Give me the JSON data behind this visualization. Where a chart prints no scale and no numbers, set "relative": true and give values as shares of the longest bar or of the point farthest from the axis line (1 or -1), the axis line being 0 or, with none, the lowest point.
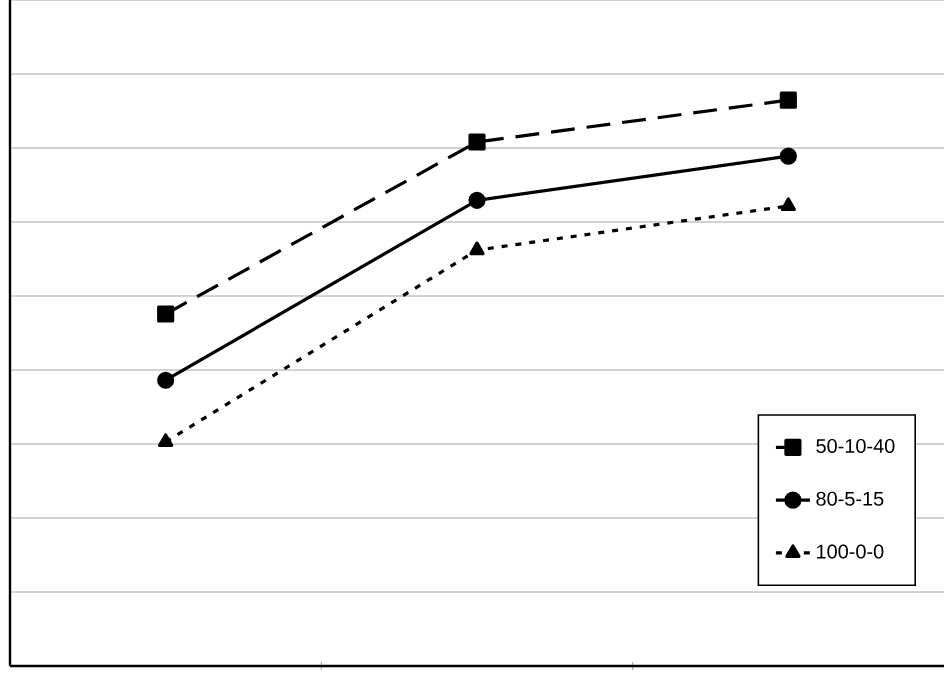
{
  "chart_data": {
    "type": "line",
    "relative": true,
    "categories": [
      null,
      null,
      null
    ],
    "grid": "y",
    "legend": "bottom right",
    "series": [
      {
        "name": "50-10-40",
        "color": "#000000",
        "marker": "square",
        "line_style": "dashed",
        "values": [
          0.622,
          0.926,
          1
        ]
      },
      {
        "name": "80-5-15",
        "color": "#000000",
        "marker": "circle",
        "line_style": "solid",
        "values": [
          0.505,
          0.823,
          0.901
        ]
      },
      {
        "name": "100-0-0",
        "color": "#000000",
        "marker": "triangle",
        "line_style": "dotted",
        "values": [
          0.396,
          0.735,
          0.813
        ]
      }
    ]
  }
}
